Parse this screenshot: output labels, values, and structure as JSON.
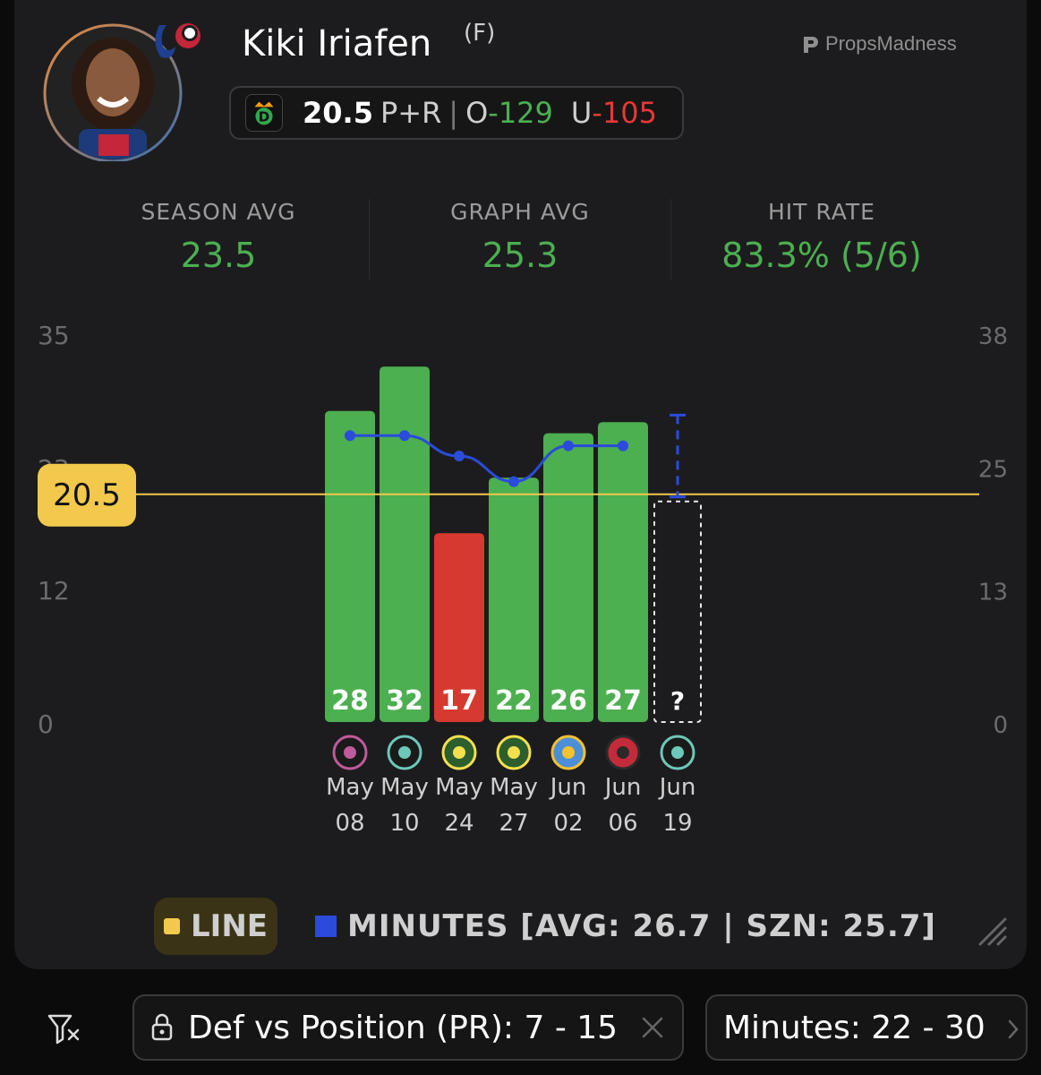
{
  "player": {
    "name": "Kiki Iriafen",
    "position": "(F)",
    "team_logo": "washington-mystics-logo"
  },
  "brand": {
    "name": "PropsMadness",
    "icon": "propsmadness-logo-icon"
  },
  "prop": {
    "book_icon": "draftkings-logo-icon",
    "line": "20.5",
    "market": "P+R",
    "over_label": "O",
    "over_odds": "-129",
    "under_label": "U",
    "under_odds": "-105"
  },
  "stats": {
    "season_avg_label": "SEASON AVG",
    "season_avg_value": "23.5",
    "graph_avg_label": "GRAPH AVG",
    "graph_avg_value": "25.3",
    "hit_rate_label": "HIT RATE",
    "hit_rate_value": "83.3% (5/6)"
  },
  "colors": {
    "hit": "#4caf50",
    "miss": "#d63a2f",
    "line": "#f2c94c",
    "minutes": "#2b4bdc",
    "axis_text": "#6b6b6b"
  },
  "chart_data": {
    "type": "bar",
    "line_value": 20.5,
    "line_label": "20.5",
    "left_axis_ticks": [
      0,
      12,
      23,
      35
    ],
    "right_axis_ticks": [
      0,
      13,
      25,
      38
    ],
    "ylim_left": [
      0,
      35
    ],
    "ylim_right": [
      0,
      38
    ],
    "games": [
      {
        "month": "May",
        "day": "08",
        "value": 28,
        "minutes": 28,
        "opponent": "toronto-tempo-logo"
      },
      {
        "month": "May",
        "day": "10",
        "value": 32,
        "minutes": 28,
        "opponent": "new-york-liberty-logo"
      },
      {
        "month": "May",
        "day": "24",
        "value": 17,
        "minutes": 26,
        "opponent": "seattle-storm-logo"
      },
      {
        "month": "May",
        "day": "27",
        "value": 22,
        "minutes": 23.5,
        "opponent": "seattle-storm-logo"
      },
      {
        "month": "Jun",
        "day": "02",
        "value": 26,
        "minutes": 27,
        "opponent": "chicago-sky-logo"
      },
      {
        "month": "Jun",
        "day": "06",
        "value": 27,
        "minutes": 27,
        "opponent": "atlanta-dream-logo"
      }
    ],
    "upcoming": {
      "month": "Jun",
      "day": "19",
      "label": "?",
      "opponent": "new-york-liberty-logo",
      "minutes_range": [
        22,
        30
      ]
    },
    "legend": {
      "line_label": "LINE",
      "minutes_label": "MINUTES [AVG: 26.7 | SZN: 25.7]"
    }
  },
  "filters": {
    "filter_icon": "filter-clear-icon",
    "def_vs_position": "Def vs Position (PR): 7 - 15",
    "minutes": "Minutes: 22 - 30"
  }
}
